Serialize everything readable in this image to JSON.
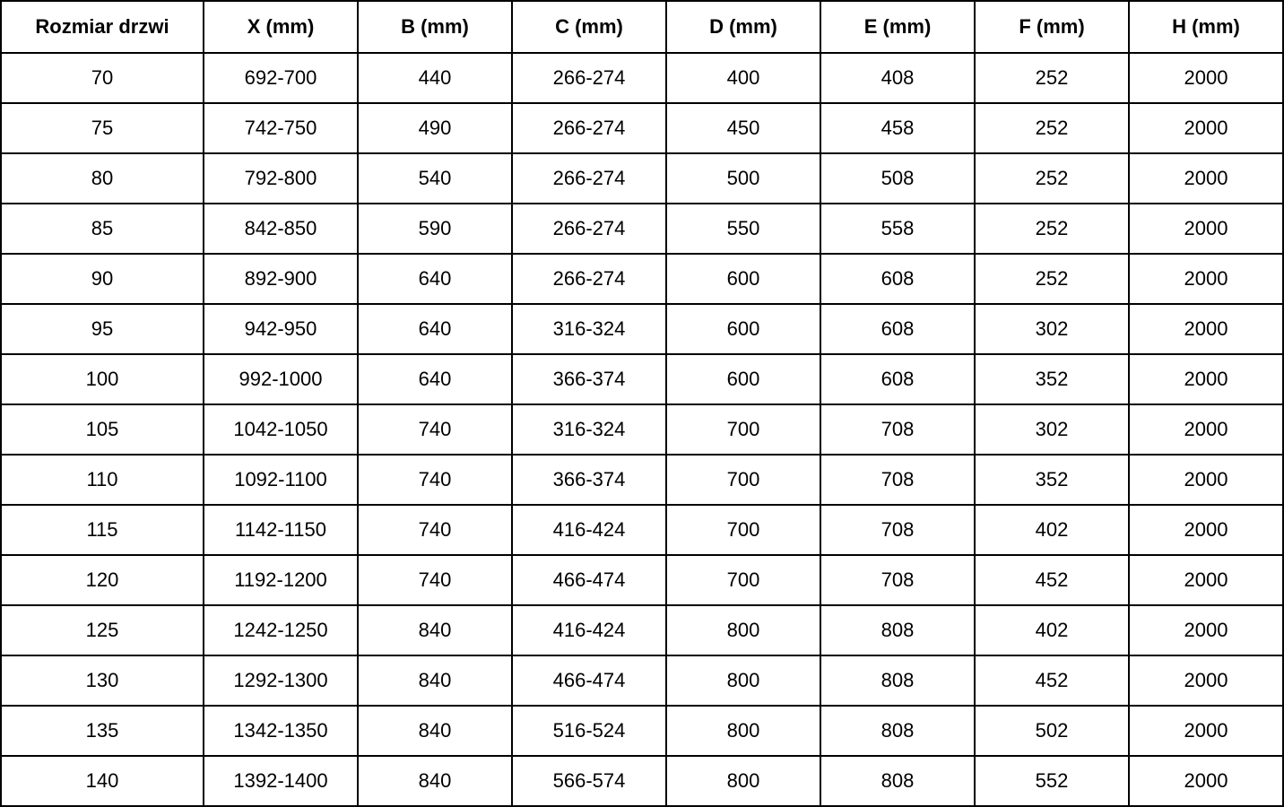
{
  "colors": {
    "border": "#000000",
    "text": "#000000",
    "background": "#ffffff"
  },
  "table": {
    "columns": [
      "Rozmiar drzwi",
      "X (mm)",
      "B (mm)",
      "C (mm)",
      "D (mm)",
      "E (mm)",
      "F (mm)",
      "H (mm)"
    ],
    "rows": [
      [
        "70",
        "692-700",
        "440",
        "266-274",
        "400",
        "408",
        "252",
        "2000"
      ],
      [
        "75",
        "742-750",
        "490",
        "266-274",
        "450",
        "458",
        "252",
        "2000"
      ],
      [
        "80",
        "792-800",
        "540",
        "266-274",
        "500",
        "508",
        "252",
        "2000"
      ],
      [
        "85",
        "842-850",
        "590",
        "266-274",
        "550",
        "558",
        "252",
        "2000"
      ],
      [
        "90",
        "892-900",
        "640",
        "266-274",
        "600",
        "608",
        "252",
        "2000"
      ],
      [
        "95",
        "942-950",
        "640",
        "316-324",
        "600",
        "608",
        "302",
        "2000"
      ],
      [
        "100",
        "992-1000",
        "640",
        "366-374",
        "600",
        "608",
        "352",
        "2000"
      ],
      [
        "105",
        "1042-1050",
        "740",
        "316-324",
        "700",
        "708",
        "302",
        "2000"
      ],
      [
        "110",
        "1092-1100",
        "740",
        "366-374",
        "700",
        "708",
        "352",
        "2000"
      ],
      [
        "115",
        "1142-1150",
        "740",
        "416-424",
        "700",
        "708",
        "402",
        "2000"
      ],
      [
        "120",
        "1192-1200",
        "740",
        "466-474",
        "700",
        "708",
        "452",
        "2000"
      ],
      [
        "125",
        "1242-1250",
        "840",
        "416-424",
        "800",
        "808",
        "402",
        "2000"
      ],
      [
        "130",
        "1292-1300",
        "840",
        "466-474",
        "800",
        "808",
        "452",
        "2000"
      ],
      [
        "135",
        "1342-1350",
        "840",
        "516-524",
        "800",
        "808",
        "502",
        "2000"
      ],
      [
        "140",
        "1392-1400",
        "840",
        "566-574",
        "800",
        "808",
        "552",
        "2000"
      ]
    ]
  }
}
